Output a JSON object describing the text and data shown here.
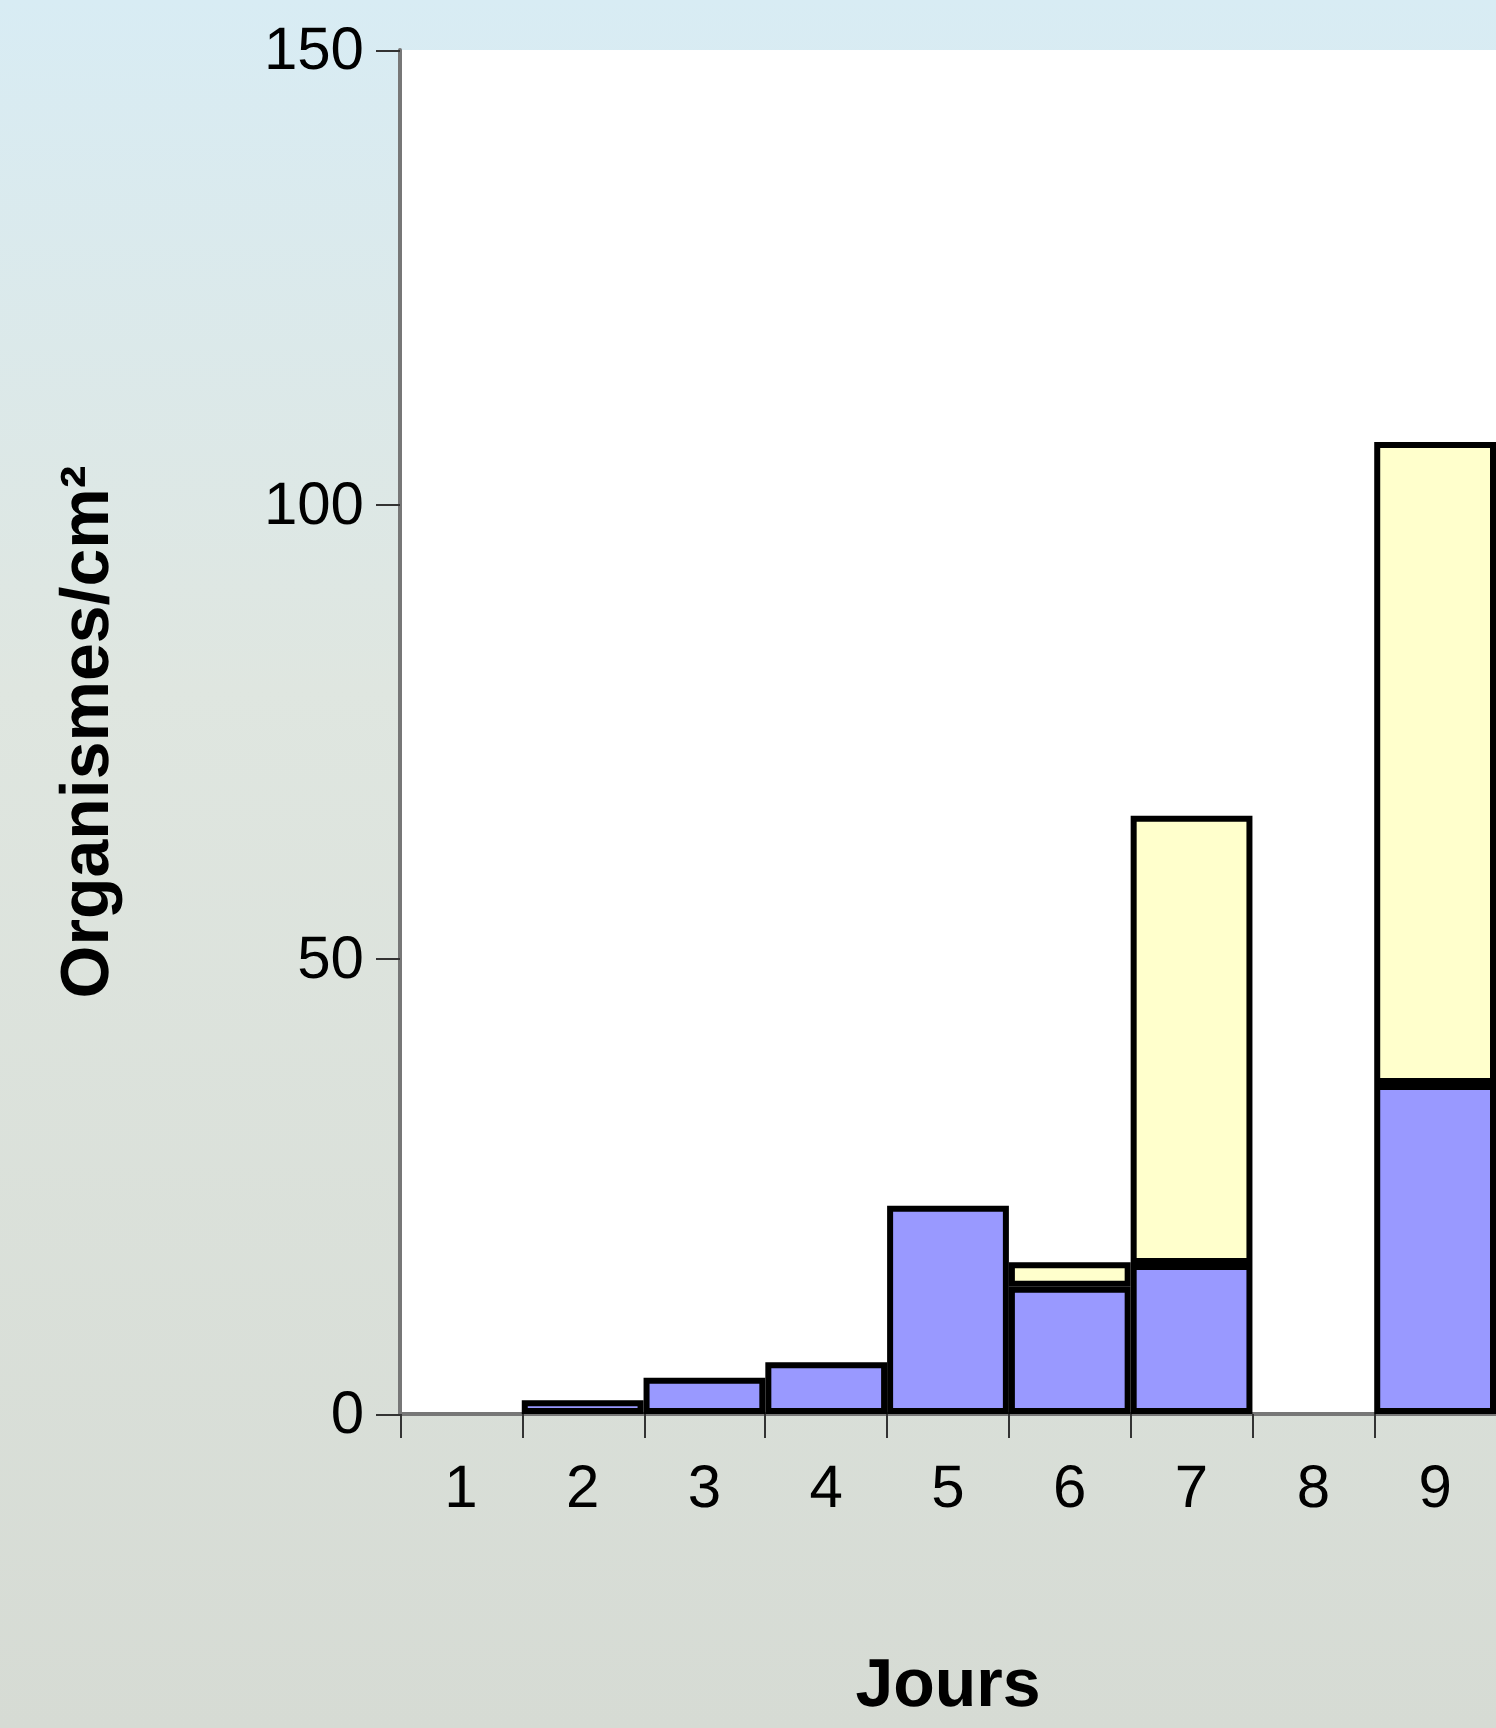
{
  "chart_data": {
    "type": "bar",
    "stacked": true,
    "xlabel": "Jours",
    "ylabel": "Organismes/cm²",
    "categories": [
      "1",
      "2",
      "3",
      "4",
      "5",
      "6",
      "7",
      "8",
      "9"
    ],
    "series": [
      {
        "color": "#9999ff",
        "values": [
          null,
          1.5,
          4,
          5.7,
          22.9,
          14,
          16.5,
          null,
          36.3
        ]
      },
      {
        "color": "#ffffcc",
        "values": [
          null,
          null,
          null,
          null,
          null,
          2.7,
          49.3,
          null,
          70.6
        ]
      }
    ],
    "ylim": [
      0,
      150
    ],
    "yticks": [
      0,
      50,
      100,
      150
    ],
    "grid": false
  }
}
